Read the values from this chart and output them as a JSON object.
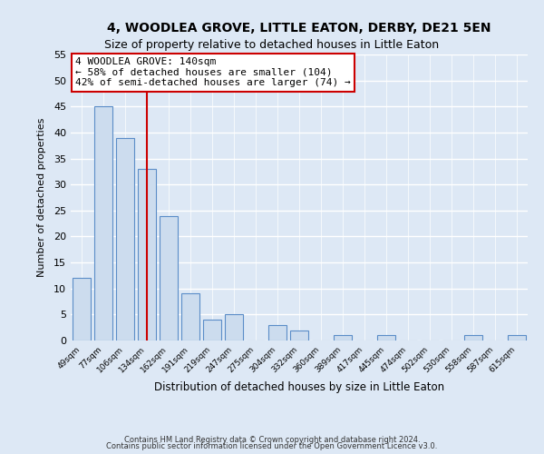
{
  "title_line1": "4, WOODLEA GROVE, LITTLE EATON, DERBY, DE21 5EN",
  "title_line2": "Size of property relative to detached houses in Little Eaton",
  "xlabel": "Distribution of detached houses by size in Little Eaton",
  "ylabel": "Number of detached properties",
  "bin_labels": [
    "49sqm",
    "77sqm",
    "106sqm",
    "134sqm",
    "162sqm",
    "191sqm",
    "219sqm",
    "247sqm",
    "275sqm",
    "304sqm",
    "332sqm",
    "360sqm",
    "389sqm",
    "417sqm",
    "445sqm",
    "474sqm",
    "502sqm",
    "530sqm",
    "558sqm",
    "587sqm",
    "615sqm"
  ],
  "bar_heights": [
    12,
    45,
    39,
    33,
    24,
    9,
    4,
    5,
    0,
    3,
    2,
    0,
    1,
    0,
    1,
    0,
    0,
    0,
    1,
    0,
    1
  ],
  "bar_color": "#ccdcee",
  "bar_edge_color": "#5b8dc8",
  "vline_x": 3.0,
  "vline_color": "#cc0000",
  "annotation_text": "4 WOODLEA GROVE: 140sqm\n← 58% of detached houses are smaller (104)\n42% of semi-detached houses are larger (74) →",
  "annotation_box_color": "white",
  "annotation_box_edge": "#cc0000",
  "ylim": [
    0,
    55
  ],
  "yticks": [
    0,
    5,
    10,
    15,
    20,
    25,
    30,
    35,
    40,
    45,
    50,
    55
  ],
  "footer_line1": "Contains HM Land Registry data © Crown copyright and database right 2024.",
  "footer_line2": "Contains public sector information licensed under the Open Government Licence v3.0.",
  "bg_color": "#dde8f5",
  "plot_bg_color": "#dde8f5",
  "grid_color": "white",
  "title_fontsize": 10,
  "subtitle_fontsize": 9
}
